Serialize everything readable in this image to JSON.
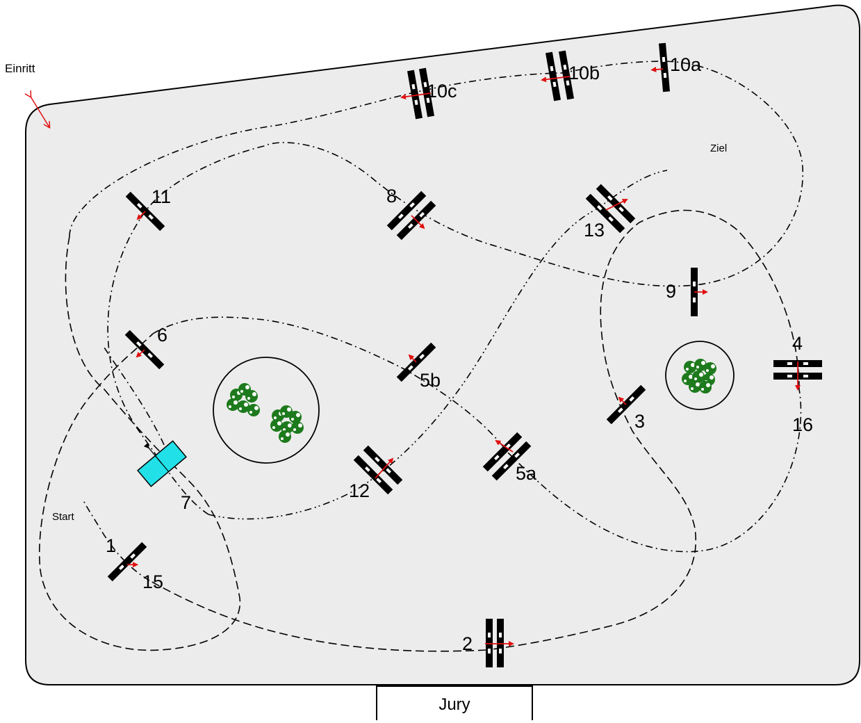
{
  "entry_label": "Einritt",
  "start_label": "Start",
  "finish_label": "Ziel",
  "jury_label": "Jury",
  "colors": {
    "arena_fill": "#ececec",
    "obstacle": "#000000",
    "direction_arrow": "#e01010",
    "water_tray": "#22e0e8",
    "bush": "#1d7a1d"
  },
  "obstacle_labels": {
    "o1": "1",
    "o2": "2",
    "o3": "3",
    "o4": "4",
    "o5a": "5a",
    "o5b": "5b",
    "o6": "6",
    "o7": "7",
    "o8": "8",
    "o9": "9",
    "o10a": "10a",
    "o10b": "10b",
    "o10c": "10c",
    "o11": "11",
    "o12": "12",
    "o13": "13",
    "o15": "15",
    "o16": "16"
  }
}
